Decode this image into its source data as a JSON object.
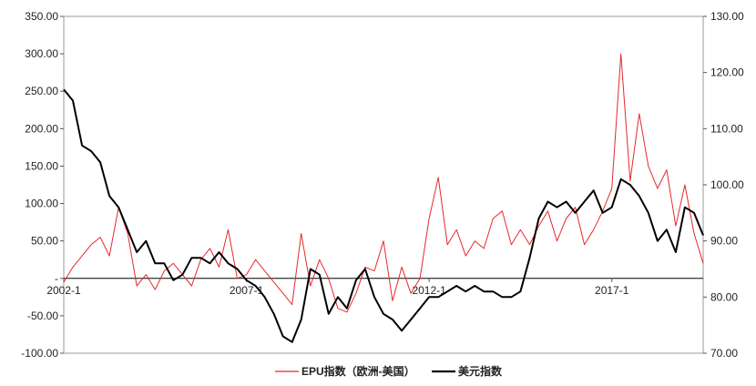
{
  "chart_data": {
    "type": "line",
    "title": "",
    "xlabel": "",
    "ylabel": "",
    "x_start": "2002-1",
    "x_end": "2019-6",
    "x_ticks": [
      {
        "value": 2002.0,
        "label": "2002-1"
      },
      {
        "value": 2007.0,
        "label": "2007-1"
      },
      {
        "value": 2012.0,
        "label": "2012-1"
      },
      {
        "value": 2017.0,
        "label": "2017-1"
      }
    ],
    "y_left": {
      "ylim": [
        -100,
        350
      ],
      "ticks": [
        {
          "value": 350,
          "label": "350.00"
        },
        {
          "value": 300,
          "label": "300.00"
        },
        {
          "value": 250,
          "label": "250.00"
        },
        {
          "value": 200,
          "label": "200.00"
        },
        {
          "value": 150,
          "label": "150.00"
        },
        {
          "value": 100,
          "label": "100.00"
        },
        {
          "value": 50,
          "label": "50.00"
        },
        {
          "value": 0,
          "label": "-"
        },
        {
          "value": -50,
          "label": "-50.00"
        },
        {
          "value": -100,
          "label": "-100.00"
        }
      ]
    },
    "y_right": {
      "ylim": [
        70,
        130
      ],
      "ticks": [
        {
          "value": 130,
          "label": "130.00"
        },
        {
          "value": 120,
          "label": "120.00"
        },
        {
          "value": 110,
          "label": "110.00"
        },
        {
          "value": 100,
          "label": "100.00"
        },
        {
          "value": 90,
          "label": "90.00"
        },
        {
          "value": 80,
          "label": "80.00"
        },
        {
          "value": 70,
          "label": "70.00"
        }
      ]
    },
    "legend_position": "bottom",
    "series": [
      {
        "name": "EPU指数（欧洲-美国）",
        "axis": "left",
        "color": "#e8272c",
        "x": [
          2002.0,
          2002.25,
          2002.5,
          2002.75,
          2003.0,
          2003.25,
          2003.5,
          2003.75,
          2004.0,
          2004.25,
          2004.5,
          2004.75,
          2005.0,
          2005.25,
          2005.5,
          2005.75,
          2006.0,
          2006.25,
          2006.5,
          2006.75,
          2007.0,
          2007.25,
          2007.5,
          2007.75,
          2008.0,
          2008.25,
          2008.5,
          2008.75,
          2009.0,
          2009.25,
          2009.5,
          2009.75,
          2010.0,
          2010.25,
          2010.5,
          2010.75,
          2011.0,
          2011.25,
          2011.5,
          2011.75,
          2012.0,
          2012.25,
          2012.5,
          2012.75,
          2013.0,
          2013.25,
          2013.5,
          2013.75,
          2014.0,
          2014.25,
          2014.5,
          2014.75,
          2015.0,
          2015.25,
          2015.5,
          2015.75,
          2016.0,
          2016.25,
          2016.5,
          2016.75,
          2017.0,
          2017.25,
          2017.5,
          2017.75,
          2018.0,
          2018.25,
          2018.5,
          2018.75,
          2019.0,
          2019.25,
          2019.5
        ],
        "values": [
          -5,
          15,
          30,
          45,
          55,
          30,
          95,
          60,
          -10,
          5,
          -15,
          10,
          20,
          5,
          -10,
          25,
          40,
          15,
          65,
          0,
          5,
          25,
          10,
          -5,
          -20,
          -35,
          60,
          -10,
          25,
          0,
          -40,
          -45,
          -20,
          15,
          10,
          50,
          -30,
          15,
          -20,
          0,
          80,
          135,
          45,
          65,
          30,
          50,
          40,
          80,
          90,
          45,
          65,
          45,
          70,
          90,
          50,
          80,
          95,
          45,
          65,
          90,
          120,
          300,
          130,
          220,
          150,
          120,
          145,
          70,
          125,
          60,
          20
        ]
      },
      {
        "name": "美元指数",
        "axis": "right",
        "color": "#000000",
        "x": [
          2002.0,
          2002.25,
          2002.5,
          2002.75,
          2003.0,
          2003.25,
          2003.5,
          2003.75,
          2004.0,
          2004.25,
          2004.5,
          2004.75,
          2005.0,
          2005.25,
          2005.5,
          2005.75,
          2006.0,
          2006.25,
          2006.5,
          2006.75,
          2007.0,
          2007.25,
          2007.5,
          2007.75,
          2008.0,
          2008.25,
          2008.5,
          2008.75,
          2009.0,
          2009.25,
          2009.5,
          2009.75,
          2010.0,
          2010.25,
          2010.5,
          2010.75,
          2011.0,
          2011.25,
          2011.5,
          2011.75,
          2012.0,
          2012.25,
          2012.5,
          2012.75,
          2013.0,
          2013.25,
          2013.5,
          2013.75,
          2014.0,
          2014.25,
          2014.5,
          2014.75,
          2015.0,
          2015.25,
          2015.5,
          2015.75,
          2016.0,
          2016.25,
          2016.5,
          2016.75,
          2017.0,
          2017.25,
          2017.5,
          2017.75,
          2018.0,
          2018.25,
          2018.5,
          2018.75,
          2019.0,
          2019.25,
          2019.5
        ],
        "values": [
          117,
          115,
          107,
          106,
          104,
          98,
          96,
          92,
          88,
          90,
          86,
          86,
          83,
          84,
          87,
          87,
          86,
          88,
          86,
          85,
          83,
          82,
          80,
          77,
          73,
          72,
          76,
          85,
          84,
          77,
          80,
          78,
          83,
          85,
          80,
          77,
          76,
          74,
          76,
          78,
          80,
          80,
          81,
          82,
          81,
          82,
          81,
          81,
          80,
          80,
          81,
          87,
          94,
          97,
          96,
          97,
          95,
          97,
          99,
          95,
          96,
          101,
          100,
          98,
          95,
          90,
          92,
          88,
          96,
          95,
          91
        ]
      }
    ]
  }
}
